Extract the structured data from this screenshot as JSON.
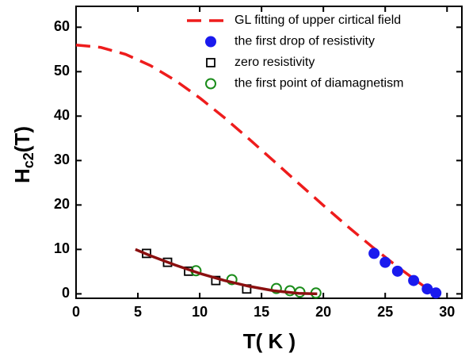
{
  "chart_data": {
    "type": "scatter",
    "x_label": "T( K )",
    "y_label": [
      "H",
      "c2",
      "(T)"
    ],
    "xlim": [
      0,
      31.2
    ],
    "ylim": [
      -1,
      64.7
    ],
    "xticks": [
      0,
      5,
      10,
      15,
      20,
      25,
      30
    ],
    "yticks": [
      0,
      10,
      20,
      30,
      40,
      50,
      60
    ],
    "legend": "top-right",
    "series": [
      {
        "name": "GL fitting of upper cirtical field",
        "color": "#ee1c1c",
        "style": "dashed",
        "x": [
          0,
          2,
          4,
          6,
          8,
          10,
          12,
          14,
          16,
          18,
          20,
          22,
          24,
          26,
          28,
          29
        ],
        "values": [
          56,
          55.47,
          53.91,
          51.4,
          48.08,
          44.1,
          39.63,
          34.83,
          29.86,
          24.85,
          19.9,
          15.09,
          10.47,
          6.09,
          1.96,
          0
        ]
      },
      {
        "name": "the first drop of resistivity",
        "color": "#1a1aee",
        "style": "circle-filled",
        "x": [
          24.1,
          25.0,
          26.0,
          27.3,
          28.4,
          29.1
        ],
        "values": [
          9.1,
          7.1,
          5.1,
          3.0,
          1.1,
          0.2
        ]
      },
      {
        "name": "zero resistivity",
        "color": "#000000",
        "style": "square-open",
        "x": [
          5.7,
          7.4,
          9.1,
          11.3,
          13.8
        ],
        "values": [
          9.1,
          7.1,
          5.1,
          3.0,
          1.1
        ]
      },
      {
        "name": "the first point of diamagnetism",
        "color": "#1a8c1a",
        "style": "circle-open",
        "x": [
          9.7,
          12.6,
          16.2,
          17.3,
          18.1,
          19.4
        ],
        "values": [
          5.2,
          3.2,
          1.2,
          0.7,
          0.4,
          0.2
        ]
      },
      {
        "color": "#8b1010",
        "style": "solid",
        "x": [
          4.8,
          6,
          8,
          10,
          12,
          14,
          16,
          18,
          19.5
        ],
        "values": [
          10,
          8.6,
          6.5,
          4.6,
          3,
          1.7,
          0.7,
          0.1,
          0
        ]
      }
    ]
  }
}
